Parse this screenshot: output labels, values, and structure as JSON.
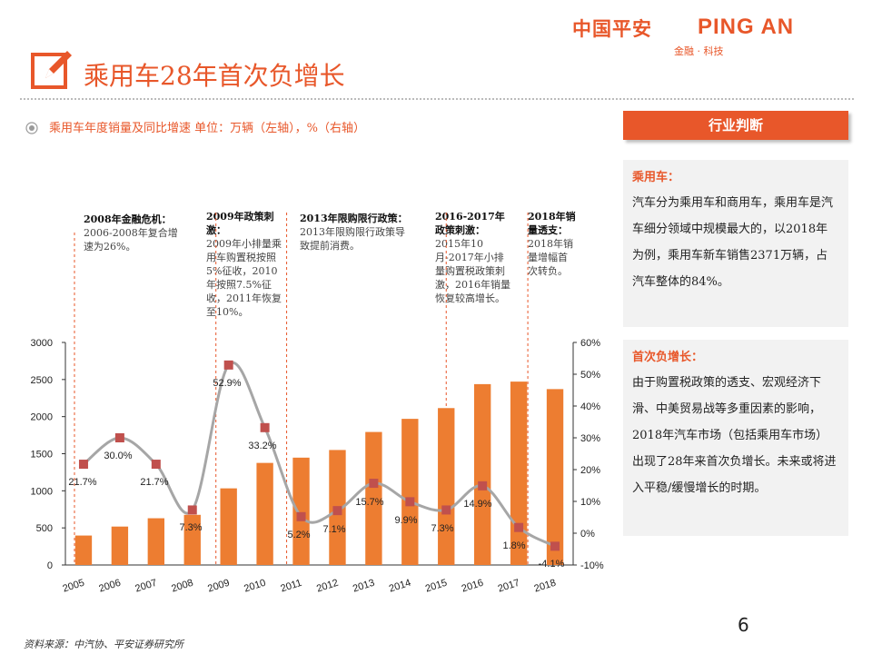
{
  "logo": {
    "cn": "中国平安",
    "en": "PING AN",
    "sub": "金融 · 科技"
  },
  "title": {
    "text": "乘用车28年首次负增长",
    "icon": "edit-pencil-icon"
  },
  "subtitle": {
    "text": "乘用车年度销量及同比增速 单位：万辆（左轴），%（右轴）",
    "icon": "radio-target-icon"
  },
  "sidebar": {
    "button_label": "行业判断",
    "section1": {
      "heading": "乘用车：",
      "text": "汽车分为乘用车和商用车，乘用车是汽车细分领域中规模最大的，以2018年为例，乘用车新车销售2371万辆，占汽车整体的84%。"
    },
    "section2": {
      "heading": "首次负增长：",
      "text": "由于购置税政策的透支、宏观经济下滑、中美贸易战等多重因素的影响，2018年汽车市场（包括乘用车市场）出现了28年来首次负增长。未来或将进入平稳/缓慢增长的时期。"
    }
  },
  "annotations": [
    {
      "heading": "2008年金融危机：",
      "text": "2006-2008年复合增速为26%。"
    },
    {
      "heading": "2009年政策刺激：",
      "text": "2009年小排量乘用车购置税按照5%征收，2010年按照7.5%征收，2011年恢复至10%。"
    },
    {
      "heading": "2013年限购限行政策：",
      "text": "2013年限购限行政策导致提前消费。"
    },
    {
      "heading": "2016-2017年政策刺激：",
      "text": "2015年10月-2017年小排量购置税政策刺激，2016年销量恢复较高增长。"
    },
    {
      "heading": "2018年销量透支：",
      "text": "2018年销量增幅首次转负。"
    }
  ],
  "chart_data": {
    "type": "bar",
    "categories": [
      "2005",
      "2006",
      "2007",
      "2008",
      "2009",
      "2010",
      "2011",
      "2012",
      "2013",
      "2014",
      "2015",
      "2016",
      "2017",
      "2018"
    ],
    "series": [
      {
        "values": [
          397,
          518,
          630,
          676,
          1033,
          1376,
          1447,
          1550,
          1793,
          1970,
          2115,
          2438,
          2472,
          2371
        ],
        "axis": "left",
        "color": "#ed7d31"
      },
      {
        "type": "line",
        "values": [
          21.7,
          30.0,
          21.7,
          7.3,
          52.9,
          33.2,
          5.2,
          7.1,
          15.7,
          9.9,
          7.3,
          14.9,
          1.8,
          -4.1
        ],
        "labels": [
          "21.7%",
          "30.0%",
          "21.7%",
          "7.3%",
          "52.9%",
          "33.2%",
          "5.2%",
          "7.1%",
          "15.7%",
          "9.9%",
          "7.3%",
          "14.9%",
          "1.8%",
          "-4.1%"
        ],
        "axis": "right",
        "line_color": "#a6a6a6",
        "marker_color": "#c0504d"
      }
    ],
    "y_left": {
      "min": 0,
      "max": 3000,
      "ticks": [
        "0",
        "500",
        "1000",
        "1500",
        "2000",
        "2500",
        "3000"
      ]
    },
    "y_right": {
      "min": -10,
      "max": 60,
      "ticks": [
        "-10%",
        "0%",
        "10%",
        "20%",
        "30%",
        "40%",
        "50%",
        "60%"
      ]
    },
    "grid": false,
    "legend": "none"
  },
  "footer": {
    "page": "6",
    "source": "资料来源：中汽协、平安证券研究所"
  }
}
